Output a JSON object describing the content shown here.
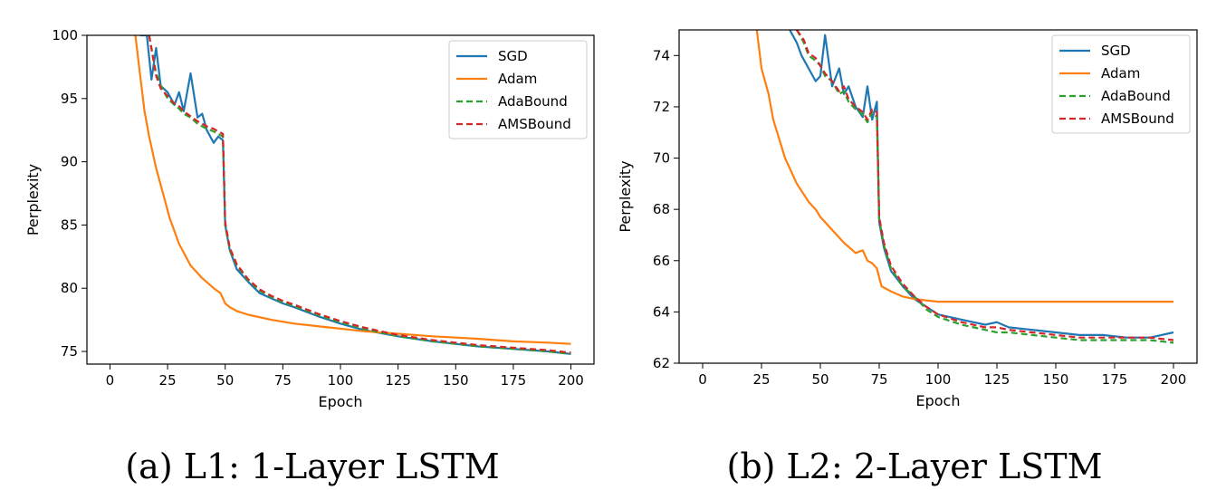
{
  "chart_data": [
    {
      "type": "line",
      "caption": "(a) L1: 1-Layer LSTM",
      "xlabel": "Epoch",
      "ylabel": "Perplexity",
      "xlim": [
        -10,
        210
      ],
      "ylim": [
        74,
        100
      ],
      "xticks": [
        0,
        25,
        50,
        75,
        100,
        125,
        150,
        175,
        200
      ],
      "yticks": [
        75,
        80,
        85,
        90,
        95,
        100
      ],
      "legend_position": "top-right",
      "series": [
        {
          "name": "SGD",
          "color": "#1f77b4",
          "style": "solid",
          "x": [
            13,
            16,
            18,
            20,
            22,
            25,
            28,
            30,
            32,
            35,
            38,
            40,
            42,
            45,
            47,
            49,
            50,
            52,
            55,
            60,
            65,
            70,
            75,
            80,
            90,
            100,
            110,
            125,
            140,
            150,
            160,
            175,
            190,
            200
          ],
          "y": [
            100,
            100,
            96.5,
            99,
            96,
            95.5,
            94.5,
            95.5,
            94,
            97,
            93.5,
            93.8,
            92.5,
            91.5,
            92,
            91.7,
            85,
            83,
            81.5,
            80.5,
            79.6,
            79.2,
            78.8,
            78.5,
            77.8,
            77.2,
            76.7,
            76.2,
            75.8,
            75.6,
            75.4,
            75.2,
            75.0,
            74.8
          ]
        },
        {
          "name": "Adam",
          "color": "#ff7f0e",
          "style": "solid",
          "x": [
            11,
            13,
            15,
            17,
            20,
            23,
            26,
            30,
            35,
            40,
            45,
            48,
            50,
            52,
            55,
            60,
            70,
            80,
            90,
            100,
            110,
            125,
            140,
            150,
            160,
            175,
            190,
            200
          ],
          "y": [
            100,
            97,
            94,
            92,
            89.5,
            87.5,
            85.5,
            83.5,
            81.8,
            80.8,
            80,
            79.6,
            78.8,
            78.5,
            78.2,
            77.9,
            77.5,
            77.2,
            77.0,
            76.8,
            76.6,
            76.4,
            76.2,
            76.1,
            76.0,
            75.8,
            75.7,
            75.6
          ]
        },
        {
          "name": "AdaBound",
          "color": "#2ca02c",
          "style": "dashed",
          "x": [
            17,
            20,
            22,
            25,
            28,
            30,
            32,
            35,
            38,
            40,
            42,
            45,
            47,
            49,
            50,
            52,
            55,
            60,
            65,
            70,
            75,
            80,
            90,
            100,
            110,
            125,
            140,
            150,
            160,
            175,
            190,
            200
          ],
          "y": [
            100,
            97,
            96,
            95,
            94.5,
            94.2,
            93.8,
            93.5,
            93,
            92.8,
            92.6,
            92.4,
            92.2,
            92,
            85,
            83,
            81.8,
            80.6,
            79.8,
            79.3,
            78.9,
            78.6,
            77.9,
            77.3,
            76.8,
            76.2,
            75.8,
            75.6,
            75.4,
            75.2,
            75.0,
            74.8
          ]
        },
        {
          "name": "AMSBound",
          "color": "#d62728",
          "style": "dashed",
          "x": [
            17,
            20,
            22,
            25,
            28,
            30,
            32,
            35,
            38,
            40,
            42,
            45,
            47,
            49,
            50,
            52,
            55,
            60,
            65,
            70,
            75,
            80,
            90,
            100,
            110,
            125,
            140,
            150,
            160,
            175,
            190,
            200
          ],
          "y": [
            100,
            96.8,
            95.8,
            95.2,
            94.6,
            94.4,
            94,
            93.6,
            93.2,
            93,
            92.8,
            92.6,
            92.4,
            92.2,
            85.2,
            83.2,
            81.9,
            80.7,
            79.9,
            79.4,
            79,
            78.7,
            78,
            77.4,
            76.9,
            76.3,
            75.9,
            75.7,
            75.5,
            75.3,
            75.1,
            74.9
          ]
        }
      ]
    },
    {
      "type": "line",
      "caption": "(b) L2: 2-Layer LSTM",
      "xlabel": "Epoch",
      "ylabel": "Perplexity",
      "xlim": [
        -10,
        210
      ],
      "ylim": [
        62,
        75
      ],
      "xticks": [
        0,
        25,
        50,
        75,
        100,
        125,
        150,
        175,
        200
      ],
      "yticks": [
        62,
        64,
        66,
        68,
        70,
        72,
        74
      ],
      "legend_position": "top-right",
      "series": [
        {
          "name": "SGD",
          "color": "#1f77b4",
          "style": "solid",
          "x": [
            37,
            40,
            42,
            45,
            48,
            50,
            52,
            55,
            58,
            60,
            62,
            65,
            68,
            70,
            72,
            74,
            75,
            77,
            80,
            85,
            90,
            95,
            100,
            110,
            120,
            125,
            130,
            140,
            150,
            160,
            170,
            180,
            190,
            200
          ],
          "y": [
            75,
            74.5,
            74,
            73.5,
            73,
            73.2,
            74.8,
            72.8,
            73.5,
            72.5,
            72.8,
            72,
            71.6,
            72.8,
            71.5,
            72.2,
            67.5,
            66.5,
            65.6,
            65,
            64.5,
            64.2,
            63.9,
            63.7,
            63.5,
            63.6,
            63.4,
            63.3,
            63.2,
            63.1,
            63.1,
            63.0,
            63.0,
            63.2
          ]
        },
        {
          "name": "Adam",
          "color": "#ff7f0e",
          "style": "solid",
          "x": [
            23,
            25,
            28,
            30,
            35,
            40,
            45,
            48,
            50,
            55,
            60,
            65,
            68,
            70,
            72,
            74,
            76,
            80,
            85,
            90,
            100,
            110,
            120,
            130,
            140,
            150,
            160,
            170,
            180,
            190,
            200
          ],
          "y": [
            75,
            73.5,
            72.5,
            71.5,
            70,
            69,
            68.3,
            68,
            67.7,
            67.2,
            66.7,
            66.3,
            66.4,
            66,
            65.9,
            65.7,
            65.0,
            64.8,
            64.6,
            64.5,
            64.4,
            64.4,
            64.4,
            64.4,
            64.4,
            64.4,
            64.4,
            64.4,
            64.4,
            64.4,
            64.4
          ]
        },
        {
          "name": "AdaBound",
          "color": "#2ca02c",
          "style": "dashed",
          "x": [
            40,
            43,
            45,
            48,
            50,
            52,
            55,
            58,
            60,
            62,
            65,
            68,
            70,
            72,
            74,
            75,
            77,
            80,
            85,
            90,
            95,
            100,
            110,
            120,
            125,
            130,
            140,
            150,
            160,
            170,
            180,
            190,
            200
          ],
          "y": [
            75,
            74.5,
            74,
            73.8,
            73.6,
            73.2,
            73,
            72.5,
            72.6,
            72.2,
            71.9,
            71.7,
            71.4,
            71.8,
            71.6,
            67.6,
            66.6,
            65.7,
            65,
            64.6,
            64.1,
            63.8,
            63.5,
            63.3,
            63.2,
            63.2,
            63.1,
            63.0,
            62.9,
            62.9,
            62.9,
            62.9,
            62.8
          ]
        },
        {
          "name": "AMSBound",
          "color": "#d62728",
          "style": "dashed",
          "x": [
            40,
            43,
            45,
            48,
            50,
            52,
            55,
            58,
            60,
            62,
            65,
            68,
            70,
            72,
            74,
            75,
            77,
            80,
            85,
            90,
            95,
            100,
            110,
            120,
            125,
            130,
            140,
            150,
            160,
            170,
            180,
            190,
            200
          ],
          "y": [
            75,
            74.6,
            74.1,
            73.9,
            73.6,
            73.3,
            73,
            72.6,
            72.8,
            72.3,
            72,
            71.8,
            71.5,
            71.9,
            71.8,
            67.7,
            66.7,
            65.8,
            65.1,
            64.6,
            64.2,
            63.9,
            63.6,
            63.4,
            63.4,
            63.3,
            63.2,
            63.1,
            63.0,
            63.0,
            63.0,
            63.0,
            62.9
          ]
        }
      ]
    }
  ]
}
